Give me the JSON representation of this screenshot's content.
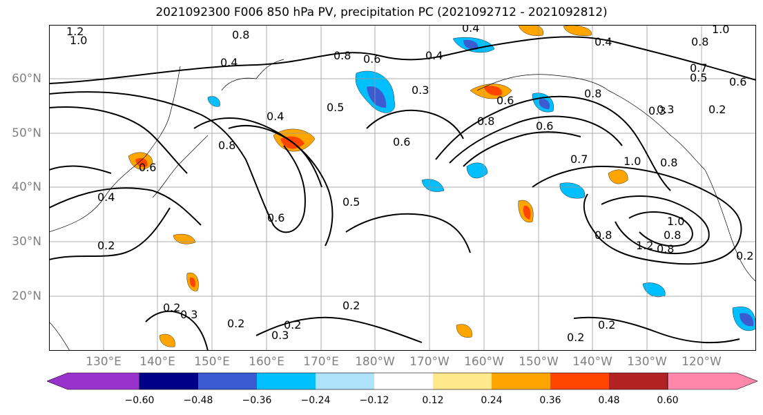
{
  "title": "2021092300 F006 850 hPa PV, precipitation PC (2021092712 - 2021092812)",
  "lat_labels": [
    "60°N",
    "50°N",
    "40°N",
    "30°N",
    "20°N"
  ],
  "lon_labels": [
    "130°E",
    "140°E",
    "150°E",
    "160°E",
    "170°E",
    "180°W",
    "170°W",
    "160°W",
    "150°W",
    "140°W",
    "130°W",
    "120°W"
  ],
  "colorbar": {
    "colors": [
      "#9932cc",
      "#00008b",
      "#3a5bd1",
      "#00bfff",
      "#aee2fb",
      "#ffffff",
      "#ffe98a",
      "#ffa500",
      "#ff4500",
      "#b22222",
      "#ff88aa"
    ],
    "ticks": [
      "−0.60",
      "−0.48",
      "−0.36",
      "−0.24",
      "−0.12",
      "0.12",
      "0.24",
      "0.36",
      "0.48",
      "0.60"
    ]
  },
  "contour_labels": [
    "1.2",
    "1.0",
    "0.8",
    "0.4",
    "0.8",
    "0.6",
    "0.4",
    "0.8",
    "1.0",
    "0.4",
    "0.4",
    "0.8",
    "0.7",
    "0.5",
    "0.6",
    "0.3",
    "0.5",
    "0.6",
    "0.4",
    "0.3",
    "0.3",
    "0.2",
    "0.8",
    "0.6",
    "0.4",
    "0.6",
    "0.8",
    "0.6",
    "0.5",
    "0.6",
    "0.7",
    "1.0",
    "0.8",
    "0.8",
    "1.0",
    "0.8",
    "1.2",
    "0.8",
    "0.2",
    "0.2",
    "0.2",
    "0.3",
    "0.2",
    "0.2",
    "0.2",
    "0.2",
    "0.3",
    "0.2"
  ]
}
